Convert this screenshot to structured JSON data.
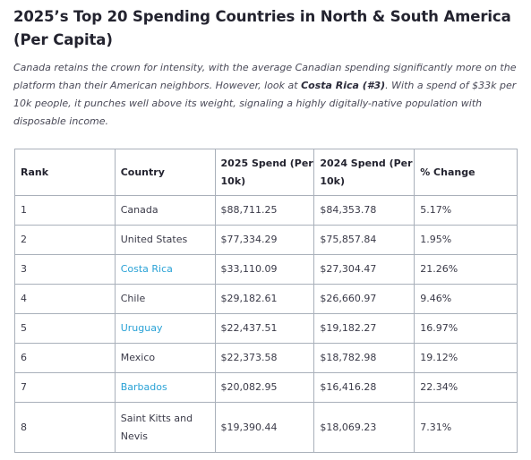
{
  "heading": "2025’s Top 20 Spending Countries in North & South America (Per Capita)",
  "intro": {
    "part1": "Canada retains the crown for intensity, with the average Canadian spending significantly more on the platform than their American neighbors. However, look at ",
    "highlight": "Costa Rica (#3)",
    "part2": ". With a spend of $33k per 10k people, it punches well above its weight, signaling a highly digitally-native population with disposable income."
  },
  "table": {
    "headers": {
      "rank": "Rank",
      "country": "Country",
      "spend2025": "2025 Spend (Per 10k)",
      "spend2024": "2024 Spend (Per 10k)",
      "change": "% Change"
    },
    "rows": [
      {
        "rank": "1",
        "country": "Canada",
        "spend2025": "$88,711.25",
        "spend2024": "$84,353.78",
        "change": "5.17%"
      },
      {
        "rank": "2",
        "country": "United States",
        "spend2025": "$77,334.29",
        "spend2024": "$75,857.84",
        "change": "1.95%"
      },
      {
        "rank": "3",
        "country": "Costa Rica",
        "spend2025": "$33,110.09",
        "spend2024": "$27,304.47",
        "change": "21.26%"
      },
      {
        "rank": "4",
        "country": "Chile",
        "spend2025": "$29,182.61",
        "spend2024": "$26,660.97",
        "change": "9.46%"
      },
      {
        "rank": "5",
        "country": "Uruguay",
        "spend2025": "$22,437.51",
        "spend2024": "$19,182.27",
        "change": "16.97%"
      },
      {
        "rank": "6",
        "country": "Mexico",
        "spend2025": "$22,373.58",
        "spend2024": "$18,782.98",
        "change": "19.12%"
      },
      {
        "rank": "7",
        "country": "Barbados",
        "spend2025": "$20,082.95",
        "spend2024": "$16,416.28",
        "change": "22.34%"
      },
      {
        "rank": "8",
        "country": "Saint Kitts and Nevis",
        "spend2025": "$19,390.44",
        "spend2024": "$18,069.23",
        "change": "7.31%"
      }
    ]
  },
  "colors": {
    "link": "#2aa2d6",
    "border": "#a9b0ba",
    "text": "#2b2b3a"
  }
}
